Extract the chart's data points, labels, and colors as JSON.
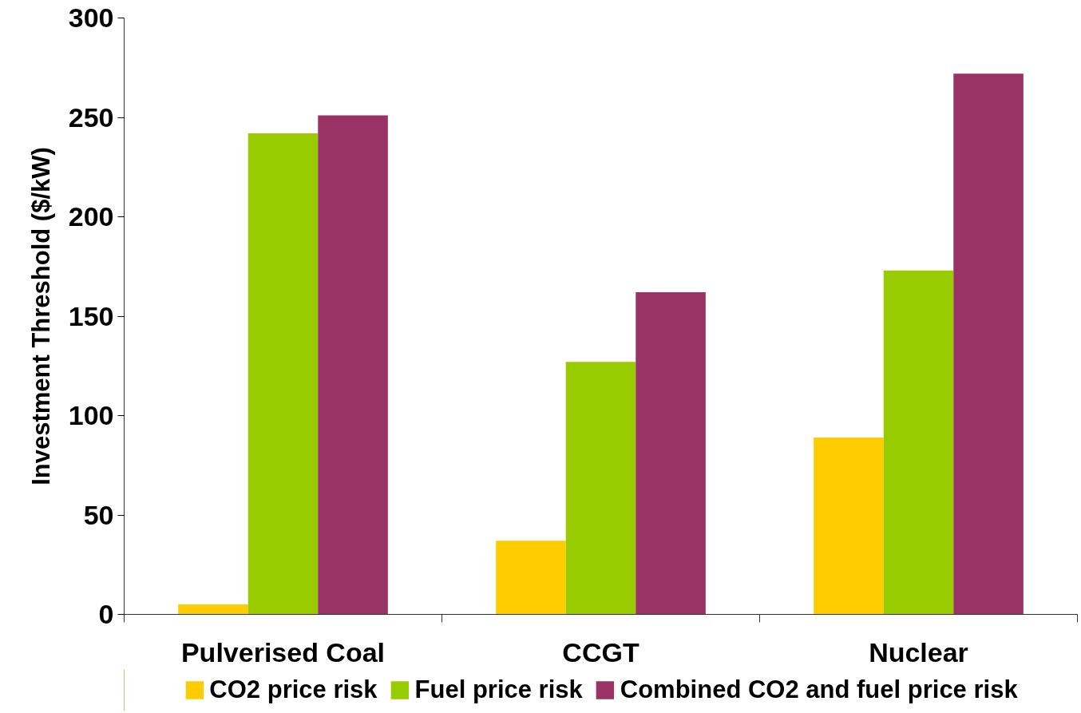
{
  "chart_data": {
    "type": "bar",
    "ylabel": "Investment Threshold ($/kW)",
    "categories": [
      "Pulverised Coal",
      "CCGT",
      "Nuclear"
    ],
    "series": [
      {
        "name": "CO2 price risk",
        "color": "#ffcc00",
        "values": [
          5,
          37,
          89
        ]
      },
      {
        "name": "Fuel price risk",
        "color": "#99cc00",
        "values": [
          242,
          127,
          173
        ]
      },
      {
        "name": "Combined CO2 and fuel price risk",
        "color": "#993366",
        "values": [
          251,
          162,
          272
        ]
      }
    ],
    "ylim": [
      0,
      300
    ],
    "yticks": [
      0,
      50,
      100,
      150,
      200,
      250,
      300
    ],
    "grid": false,
    "legend": "bottom"
  }
}
